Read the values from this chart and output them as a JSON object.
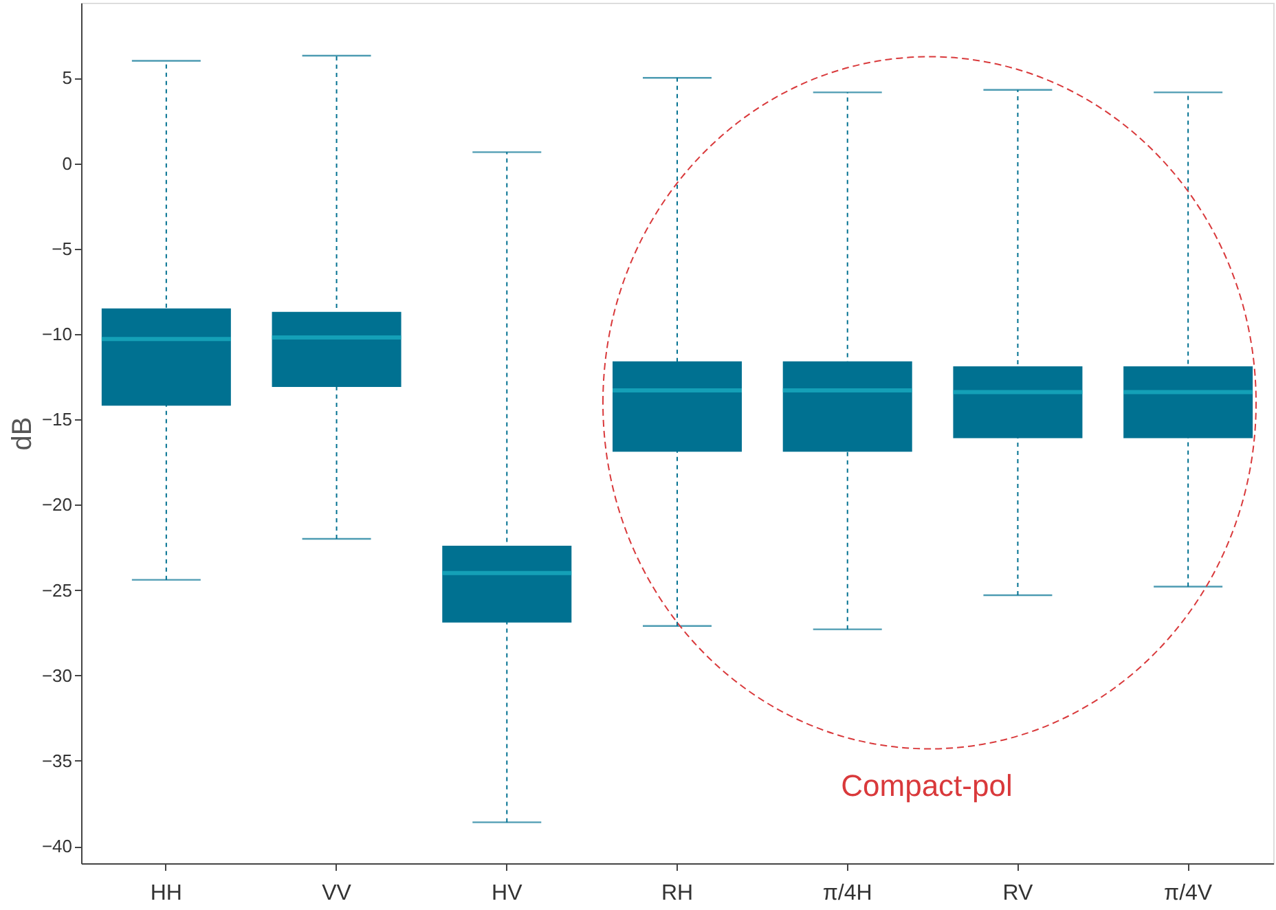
{
  "chart_data": {
    "type": "box",
    "ylabel": "dB",
    "categories": [
      "HH",
      "VV",
      "HV",
      "RH",
      "π/4H",
      "RV",
      "π/4V"
    ],
    "boxes": [
      {
        "low": -24.4,
        "q1": -14.2,
        "median": -10.3,
        "q3": -8.5,
        "high": 6.0
      },
      {
        "low": -22.0,
        "q1": -13.1,
        "median": -10.2,
        "q3": -8.7,
        "high": 6.3
      },
      {
        "low": -38.6,
        "q1": -26.9,
        "median": -24.0,
        "q3": -22.4,
        "high": 0.65
      },
      {
        "low": -27.1,
        "q1": -16.9,
        "median": -13.3,
        "q3": -11.6,
        "high": 5.0
      },
      {
        "low": -27.3,
        "q1": -16.9,
        "median": -13.3,
        "q3": -11.6,
        "high": 4.15
      },
      {
        "low": -25.3,
        "q1": -16.1,
        "median": -13.4,
        "q3": -11.9,
        "high": 4.3
      },
      {
        "low": -24.8,
        "q1": -16.1,
        "median": -13.4,
        "q3": -11.9,
        "high": 4.15
      }
    ],
    "color": "#007191",
    "ylim": [
      -41,
      9.4
    ],
    "yticks": [
      -40,
      -35,
      -30,
      -25,
      -20,
      -15,
      -10,
      -5,
      0,
      5
    ],
    "grid": false,
    "annotations": [
      "Compact-pol"
    ]
  }
}
